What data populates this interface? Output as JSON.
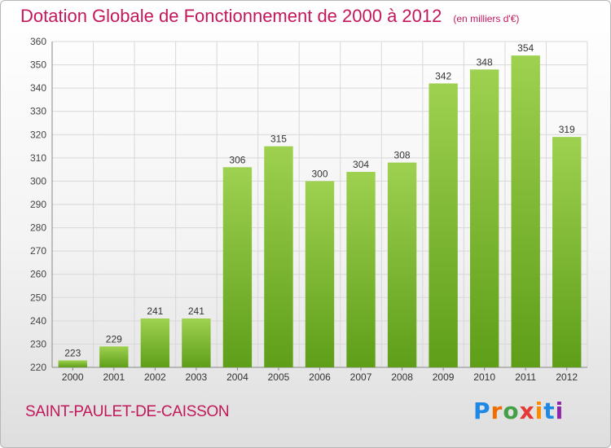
{
  "chart_data": {
    "type": "bar",
    "title": "Dotation Globale de Fonctionnement de 2000 à 2012",
    "subtitle": "(en milliers d'€)",
    "categories": [
      "2000",
      "2001",
      "2002",
      "2003",
      "2004",
      "2005",
      "2006",
      "2007",
      "2008",
      "2009",
      "2010",
      "2011",
      "2012"
    ],
    "values": [
      223,
      229,
      241,
      241,
      306,
      315,
      300,
      304,
      308,
      342,
      348,
      354,
      319
    ],
    "ylim": [
      220,
      360
    ],
    "yticks": [
      220,
      230,
      240,
      250,
      260,
      270,
      280,
      290,
      300,
      310,
      320,
      330,
      340,
      350,
      360
    ],
    "grid": true,
    "bar_color_top": "#9ed150",
    "bar_color_bottom": "#5e9e18"
  },
  "footer": {
    "commune": "SAINT-PAULET-DE-CAISSON",
    "logo_text": "Proxiti"
  },
  "colors": {
    "title": "#c2185b",
    "grid": "#d8d8d8"
  }
}
